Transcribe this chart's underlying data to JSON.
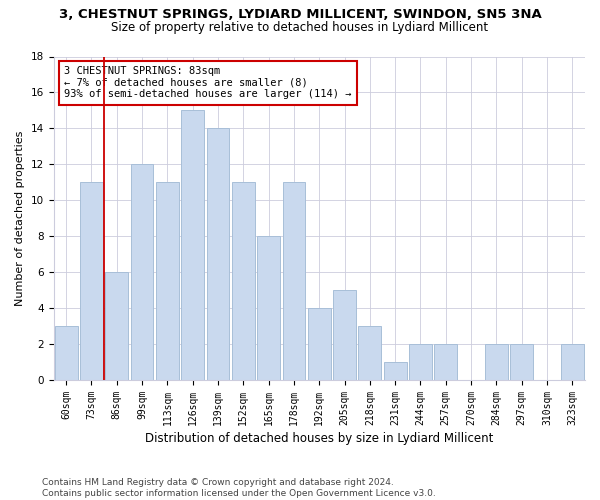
{
  "title_line1": "3, CHESTNUT SPRINGS, LYDIARD MILLICENT, SWINDON, SN5 3NA",
  "title_line2": "Size of property relative to detached houses in Lydiard Millicent",
  "xlabel": "Distribution of detached houses by size in Lydiard Millicent",
  "ylabel": "Number of detached properties",
  "categories": [
    "60sqm",
    "73sqm",
    "86sqm",
    "99sqm",
    "113sqm",
    "126sqm",
    "139sqm",
    "152sqm",
    "165sqm",
    "178sqm",
    "192sqm",
    "205sqm",
    "218sqm",
    "231sqm",
    "244sqm",
    "257sqm",
    "270sqm",
    "284sqm",
    "297sqm",
    "310sqm",
    "323sqm"
  ],
  "values": [
    3,
    11,
    6,
    12,
    11,
    15,
    14,
    11,
    8,
    11,
    4,
    5,
    3,
    1,
    2,
    2,
    0,
    2,
    2,
    0,
    2
  ],
  "bar_color": "#c9d9ee",
  "bar_edgecolor": "#a8bfd8",
  "vline_color": "#cc0000",
  "vline_position": 1.5,
  "annotation_text": "3 CHESTNUT SPRINGS: 83sqm\n← 7% of detached houses are smaller (8)\n93% of semi-detached houses are larger (114) →",
  "annotation_box_facecolor": "#ffffff",
  "annotation_box_edgecolor": "#cc0000",
  "ylim": [
    0,
    18
  ],
  "yticks": [
    0,
    2,
    4,
    6,
    8,
    10,
    12,
    14,
    16,
    18
  ],
  "grid_color": "#ccccdd",
  "background_color": "#ffffff",
  "footnote": "Contains HM Land Registry data © Crown copyright and database right 2024.\nContains public sector information licensed under the Open Government Licence v3.0.",
  "title1_fontsize": 9.5,
  "title2_fontsize": 8.5,
  "xlabel_fontsize": 8.5,
  "ylabel_fontsize": 8,
  "tick_fontsize": 7,
  "annot_fontsize": 7.5,
  "footnote_fontsize": 6.5
}
